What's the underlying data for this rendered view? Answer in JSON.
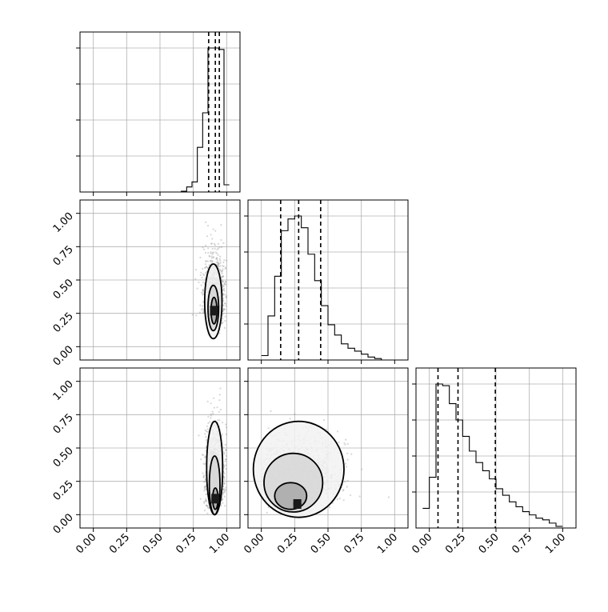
{
  "chart_data": {
    "type": "corner",
    "variables": [
      "",
      "",
      ""
    ],
    "axis_range": [
      -0.1,
      1.1
    ],
    "ticks": [
      0.0,
      0.25,
      0.5,
      0.75,
      1.0
    ],
    "tick_labels": [
      "0.00",
      "0.25",
      "0.50",
      "0.75",
      "1.00"
    ],
    "grid": true,
    "colors": {
      "ink": "#000000",
      "grid": "#b0b0b0",
      "points": "#8c8c8c"
    },
    "histograms": [
      {
        "name": "",
        "bin_edges": [
          0.62,
          0.66,
          0.7,
          0.74,
          0.78,
          0.82,
          0.86,
          0.9,
          0.94,
          0.98,
          1.02
        ],
        "values": [
          0,
          0.005,
          0.035,
          0.07,
          0.31,
          0.55,
          1.0,
          1.0,
          0.99,
          0.05
        ],
        "quantiles": [
          0.865,
          0.915,
          0.945
        ]
      },
      {
        "name": "",
        "bin_edges": [
          0,
          0.05,
          0.1,
          0.15,
          0.2,
          0.25,
          0.3,
          0.35,
          0.4,
          0.45,
          0.5,
          0.55,
          0.6,
          0.65,
          0.7,
          0.75,
          0.8,
          0.85,
          0.9,
          0.95,
          1.0
        ],
        "values": [
          0.03,
          0.3,
          0.57,
          0.88,
          0.96,
          0.98,
          0.9,
          0.72,
          0.54,
          0.37,
          0.24,
          0.17,
          0.11,
          0.08,
          0.06,
          0.04,
          0.02,
          0.01,
          0,
          0
        ],
        "quantiles": [
          0.145,
          0.28,
          0.445
        ]
      },
      {
        "name": "",
        "bin_edges": [
          -0.05,
          0.0,
          0.05,
          0.1,
          0.15,
          0.2,
          0.25,
          0.3,
          0.35,
          0.4,
          0.45,
          0.5,
          0.55,
          0.6,
          0.65,
          0.7,
          0.75,
          0.8,
          0.85,
          0.9,
          0.95,
          1.0
        ],
        "values": [
          0.12,
          0.31,
          0.88,
          0.87,
          0.76,
          0.66,
          0.56,
          0.47,
          0.4,
          0.35,
          0.3,
          0.24,
          0.2,
          0.16,
          0.13,
          0.1,
          0.08,
          0.06,
          0.05,
          0.03,
          0.01
        ],
        "quantiles": [
          0.065,
          0.215,
          0.495
        ]
      }
    ],
    "pairs": [
      {
        "row": 1,
        "col": 0,
        "center": [
          0.905,
          0.3
        ],
        "spread": [
          0.04,
          0.18
        ],
        "contours": [
          {
            "cx": 0.905,
            "cy": 0.27,
            "rx": 0.022,
            "ry": 0.1
          },
          {
            "cx": 0.9,
            "cy": 0.29,
            "rx": 0.04,
            "ry": 0.17
          },
          {
            "cx": 0.9,
            "cy": 0.34,
            "rx": 0.065,
            "ry": 0.28
          }
        ]
      },
      {
        "row": 2,
        "col": 0,
        "center": [
          0.91,
          0.22
        ],
        "spread": [
          0.035,
          0.22
        ],
        "contours": [
          {
            "cx": 0.915,
            "cy": 0.12,
            "rx": 0.02,
            "ry": 0.08
          },
          {
            "cx": 0.91,
            "cy": 0.22,
            "rx": 0.04,
            "ry": 0.22
          },
          {
            "cx": 0.91,
            "cy": 0.35,
            "rx": 0.06,
            "ry": 0.35
          }
        ]
      },
      {
        "row": 2,
        "col": 1,
        "center": [
          0.27,
          0.2
        ],
        "spread": [
          0.16,
          0.19
        ],
        "contours": [
          {
            "cx": 0.27,
            "cy": 0.08,
            "rx": 0.025,
            "ry": 0.03
          },
          {
            "cx": 0.22,
            "cy": 0.14,
            "rx": 0.12,
            "ry": 0.1
          },
          {
            "cx": 0.24,
            "cy": 0.24,
            "rx": 0.22,
            "ry": 0.22
          },
          {
            "cx": 0.28,
            "cy": 0.34,
            "rx": 0.34,
            "ry": 0.36
          }
        ]
      }
    ]
  }
}
